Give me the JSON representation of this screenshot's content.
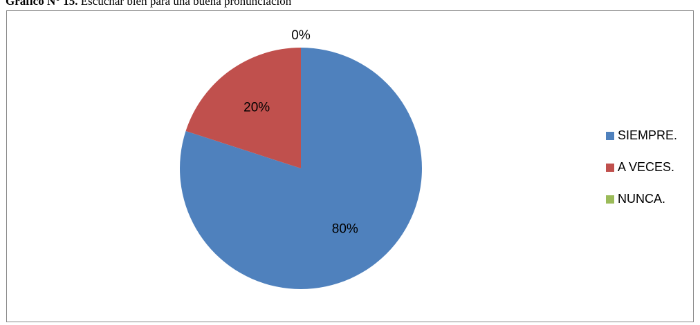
{
  "caption": {
    "prefix": "Gráfico N° 15.",
    "text": "Escuchar bien para una buena pronunciación"
  },
  "chart_data": {
    "type": "pie",
    "categories": [
      "SIEMPRE.",
      "A VECES.",
      "NUNCA."
    ],
    "values": [
      80,
      20,
      0
    ],
    "value_labels": [
      "80%",
      "20%",
      "0%"
    ],
    "colors": [
      "#4F81BD",
      "#C0504D",
      "#9BBB59"
    ],
    "legend_position": "right",
    "start_angle": "top, clockwise"
  }
}
